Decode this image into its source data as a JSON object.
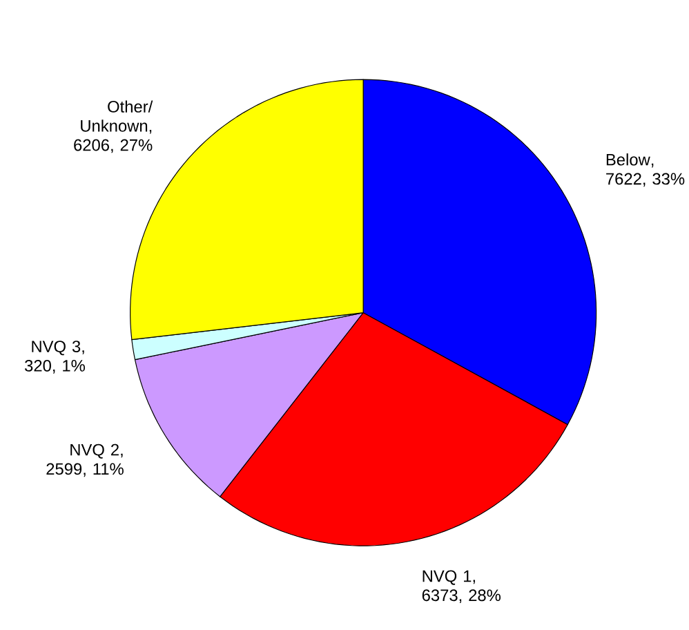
{
  "chart_data": {
    "type": "pie",
    "categories": [
      "Below",
      "NVQ 1",
      "NVQ 2",
      "NVQ 3",
      "Other/ Unknown"
    ],
    "values": [
      7622,
      6373,
      2599,
      320,
      6206
    ],
    "value_labels": [
      ", 7622, 33%",
      ", 6373, 28%",
      ", 2599, 11%",
      ", 320, 1%",
      ", 6206, 27%"
    ],
    "colors": [
      "#0000ff",
      "#ff0000",
      "#cc99ff",
      "#ccffff",
      "#ffff00"
    ]
  }
}
